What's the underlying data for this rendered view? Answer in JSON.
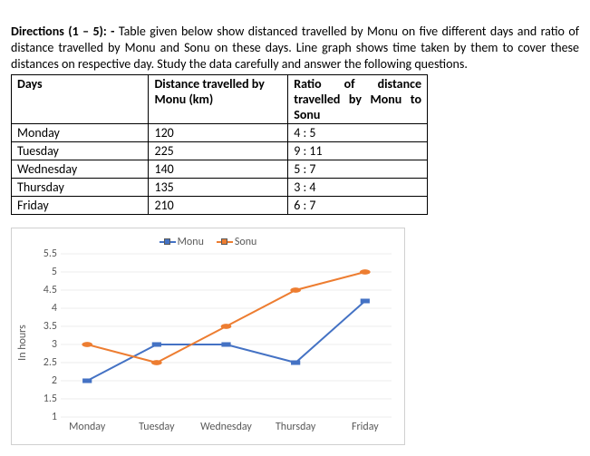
{
  "directions": {
    "label": "Directions (1 – 5): - ",
    "text": "Table given below show distanced travelled by Monu on five different days and ratio of distance travelled by Monu and Sonu on these days. Line graph shows time taken by them to cover these distances on respective day. Study the data carefully and answer the following questions."
  },
  "table": {
    "columns": [
      "Days",
      "Distance travelled by Monu (km)",
      "Ratio of distance travelled by Monu to Sonu"
    ],
    "col_widths": [
      "150px",
      "155px",
      "155px"
    ],
    "rows": [
      [
        "Monday",
        "120",
        "4 : 5"
      ],
      [
        "Tuesday",
        "225",
        "9 : 11"
      ],
      [
        "Wednesday",
        "140",
        "5 : 7"
      ],
      [
        "Thursday",
        "135",
        "3 : 4"
      ],
      [
        "Friday",
        "210",
        "6 : 7"
      ]
    ]
  },
  "chart": {
    "type": "line",
    "ylabel": "In hours",
    "ylim": [
      1,
      5.5
    ],
    "ytick_step": 0.5,
    "yticks": [
      1,
      1.5,
      2,
      2.5,
      3,
      3.5,
      4,
      4.5,
      5,
      5.5
    ],
    "categories": [
      "Monday",
      "Tuesday",
      "Wednesday",
      "Thursday",
      "Friday"
    ],
    "grid_color": "#d9d9d9",
    "background_color": "#ffffff",
    "series": [
      {
        "name": "Monu",
        "color": "#4472c4",
        "marker": "square",
        "values": [
          2,
          3,
          3,
          2.5,
          4.2
        ]
      },
      {
        "name": "Sonu",
        "color": "#ed7d31",
        "marker": "circle",
        "values": [
          3,
          2.5,
          3.5,
          4.5,
          5
        ]
      }
    ],
    "label_fontsize": 12,
    "line_width": 2
  }
}
